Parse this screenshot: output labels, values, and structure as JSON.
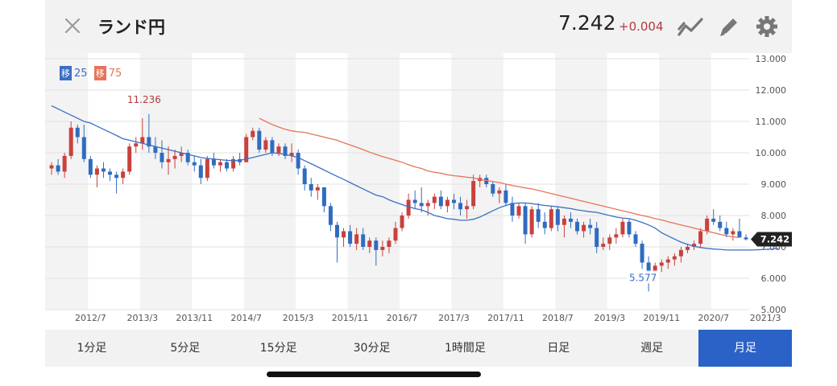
{
  "header": {
    "title": "ランド円",
    "price": "7.242",
    "change": "+0.004",
    "icons": [
      "close-icon",
      "trend-line-icon",
      "pencil-icon",
      "gear-icon"
    ]
  },
  "legend": [
    {
      "tag": "移",
      "value": "25",
      "color": "#3a6fc4"
    },
    {
      "tag": "移",
      "value": "75",
      "color": "#e8735a"
    }
  ],
  "annotations": {
    "high_label": "11.236",
    "low_label": "5.577",
    "last_price_label": "7.242"
  },
  "tabs": [
    {
      "label": "1分足",
      "active": false
    },
    {
      "label": "5分足",
      "active": false
    },
    {
      "label": "15分足",
      "active": false
    },
    {
      "label": "30分足",
      "active": false
    },
    {
      "label": "1時間足",
      "active": false
    },
    {
      "label": "日足",
      "active": false
    },
    {
      "label": "週足",
      "active": false
    },
    {
      "label": "月足",
      "active": true
    }
  ],
  "colors": {
    "up": "#c8413d",
    "down": "#2f6cc0",
    "ma25": "#3a6fc4",
    "ma75": "#e8735a",
    "active_tab": "#2b62c8"
  },
  "chart_data": {
    "type": "candlestick",
    "y_ticks": [
      "13.000",
      "12.000",
      "11.000",
      "10.000",
      "9.000",
      "8.000",
      "7.000",
      "6.000",
      "5.000"
    ],
    "ylim": [
      5,
      13
    ],
    "x_ticks": [
      "2012/7",
      "2013/3",
      "2013/11",
      "2014/7",
      "2015/3",
      "2015/11",
      "2016/7",
      "2017/3",
      "2017/11",
      "2018/7",
      "2019/3",
      "2019/11",
      "2020/7",
      "2021/3"
    ],
    "x_tick_months": [
      6,
      14,
      22,
      30,
      38,
      46,
      54,
      62,
      70,
      78,
      86,
      94,
      102,
      110
    ],
    "grid": true,
    "series": [
      {
        "name": "移25",
        "type": "line",
        "start_month": 0,
        "values": [
          11.5,
          11.4,
          11.3,
          11.2,
          11.1,
          11.0,
          10.95,
          10.85,
          10.75,
          10.65,
          10.55,
          10.45,
          10.4,
          10.35,
          10.3,
          10.25,
          10.2,
          10.15,
          10.1,
          10.05,
          10.0,
          9.95,
          9.9,
          9.85,
          9.82,
          9.8,
          9.78,
          9.76,
          9.75,
          9.76,
          9.8,
          9.85,
          9.9,
          9.95,
          10.0,
          9.98,
          9.95,
          9.9,
          9.85,
          9.75,
          9.65,
          9.55,
          9.45,
          9.35,
          9.25,
          9.15,
          9.05,
          8.95,
          8.85,
          8.75,
          8.65,
          8.6,
          8.5,
          8.42,
          8.35,
          8.28,
          8.22,
          8.18,
          8.1,
          8.0,
          7.95,
          7.9,
          7.88,
          7.85,
          7.85,
          7.88,
          7.95,
          8.05,
          8.15,
          8.25,
          8.32,
          8.38,
          8.4,
          8.4,
          8.38,
          8.35,
          8.32,
          8.3,
          8.28,
          8.25,
          8.22,
          8.18,
          8.15,
          8.12,
          8.1,
          8.05,
          8.0,
          7.95,
          7.92,
          7.9,
          7.85,
          7.78,
          7.7,
          7.6,
          7.45,
          7.35,
          7.25,
          7.15,
          7.08,
          7.02,
          6.98,
          6.95,
          6.93,
          6.92,
          6.9,
          6.9,
          6.9,
          6.9,
          6.9,
          6.91,
          6.92,
          6.93,
          6.95
        ]
      },
      {
        "name": "移75",
        "type": "line",
        "start_month": 32,
        "values": [
          11.1,
          11.0,
          10.9,
          10.82,
          10.75,
          10.7,
          10.67,
          10.65,
          10.6,
          10.55,
          10.5,
          10.45,
          10.4,
          10.32,
          10.25,
          10.18,
          10.1,
          10.02,
          9.95,
          9.88,
          9.82,
          9.76,
          9.7,
          9.62,
          9.55,
          9.5,
          9.42,
          9.38,
          9.35,
          9.3,
          9.27,
          9.25,
          9.22,
          9.2,
          9.15,
          9.12,
          9.08,
          9.05,
          9.0,
          8.96,
          8.92,
          8.88,
          8.85,
          8.8,
          8.75,
          8.7,
          8.65,
          8.6,
          8.55,
          8.5,
          8.45,
          8.4,
          8.35,
          8.3,
          8.25,
          8.2,
          8.15,
          8.1,
          8.05,
          8.0,
          7.96,
          7.9,
          7.86,
          7.8,
          7.75,
          7.7,
          7.65,
          7.6,
          7.55,
          7.5,
          7.45,
          7.4,
          7.35,
          7.32,
          7.3
        ]
      },
      {
        "name": "月足",
        "type": "ohlc",
        "ohlc": [
          [
            9.5,
            9.7,
            9.3,
            9.6
          ],
          [
            9.6,
            9.8,
            9.3,
            9.4
          ],
          [
            9.4,
            10.0,
            9.2,
            9.9
          ],
          [
            9.9,
            11.0,
            9.8,
            10.8
          ],
          [
            10.8,
            10.9,
            10.3,
            10.5
          ],
          [
            10.5,
            10.9,
            9.7,
            9.8
          ],
          [
            9.8,
            9.9,
            9.2,
            9.3
          ],
          [
            9.3,
            9.6,
            8.9,
            9.5
          ],
          [
            9.5,
            9.7,
            9.2,
            9.4
          ],
          [
            9.4,
            9.5,
            9.1,
            9.3
          ],
          [
            9.3,
            9.4,
            8.7,
            9.2
          ],
          [
            9.2,
            9.5,
            9.0,
            9.4
          ],
          [
            9.4,
            10.3,
            9.3,
            10.2
          ],
          [
            10.2,
            10.5,
            10.0,
            10.3
          ],
          [
            10.3,
            11.1,
            10.1,
            10.5
          ],
          [
            10.5,
            11.236,
            10.0,
            10.2
          ],
          [
            10.2,
            10.5,
            9.8,
            10.0
          ],
          [
            10.0,
            10.4,
            9.5,
            9.7
          ],
          [
            9.7,
            10.2,
            9.3,
            9.8
          ],
          [
            9.8,
            10.1,
            9.5,
            9.9
          ],
          [
            9.9,
            10.2,
            9.7,
            10.0
          ],
          [
            10.0,
            10.1,
            9.6,
            9.7
          ],
          [
            9.7,
            9.9,
            9.4,
            9.6
          ],
          [
            9.6,
            9.8,
            9.0,
            9.2
          ],
          [
            9.2,
            9.9,
            9.1,
            9.8
          ],
          [
            9.8,
            10.0,
            9.5,
            9.6
          ],
          [
            9.6,
            9.8,
            9.4,
            9.7
          ],
          [
            9.7,
            9.8,
            9.4,
            9.5
          ],
          [
            9.5,
            9.9,
            9.4,
            9.8
          ],
          [
            9.8,
            10.0,
            9.6,
            9.7
          ],
          [
            9.7,
            10.6,
            9.7,
            10.5
          ],
          [
            10.5,
            10.8,
            10.4,
            10.7
          ],
          [
            10.7,
            10.8,
            10.0,
            10.1
          ],
          [
            10.1,
            10.5,
            10.0,
            10.4
          ],
          [
            10.4,
            10.5,
            9.9,
            10.0
          ],
          [
            10.0,
            10.3,
            9.9,
            10.2
          ],
          [
            10.2,
            10.3,
            9.8,
            9.9
          ],
          [
            9.9,
            10.3,
            9.7,
            10.0
          ],
          [
            10.0,
            10.1,
            9.3,
            9.5
          ],
          [
            9.5,
            9.6,
            8.8,
            9.0
          ],
          [
            9.0,
            9.2,
            8.6,
            8.8
          ],
          [
            8.8,
            9.0,
            8.5,
            8.9
          ],
          [
            8.9,
            8.9,
            8.1,
            8.3
          ],
          [
            8.3,
            8.4,
            7.5,
            7.7
          ],
          [
            7.7,
            7.8,
            6.5,
            7.3
          ],
          [
            7.3,
            7.6,
            7.0,
            7.5
          ],
          [
            7.5,
            7.7,
            7.0,
            7.1
          ],
          [
            7.1,
            7.6,
            6.9,
            7.4
          ],
          [
            7.4,
            7.6,
            6.9,
            7.0
          ],
          [
            7.0,
            7.3,
            6.8,
            7.2
          ],
          [
            7.2,
            7.3,
            6.4,
            6.9
          ],
          [
            6.9,
            7.2,
            6.7,
            7.0
          ],
          [
            7.0,
            7.3,
            6.8,
            7.2
          ],
          [
            7.2,
            7.8,
            7.1,
            7.6
          ],
          [
            7.6,
            8.1,
            7.5,
            8.0
          ],
          [
            8.0,
            8.7,
            7.9,
            8.5
          ],
          [
            8.5,
            8.8,
            8.2,
            8.4
          ],
          [
            8.4,
            8.9,
            8.1,
            8.3
          ],
          [
            8.3,
            8.5,
            8.0,
            8.4
          ],
          [
            8.4,
            8.7,
            8.2,
            8.6
          ],
          [
            8.6,
            8.8,
            8.2,
            8.3
          ],
          [
            8.3,
            8.6,
            8.1,
            8.5
          ],
          [
            8.5,
            8.7,
            8.2,
            8.4
          ],
          [
            8.4,
            8.6,
            8.0,
            8.2
          ],
          [
            8.2,
            8.5,
            7.9,
            8.3
          ],
          [
            8.3,
            9.3,
            8.2,
            9.1
          ],
          [
            9.1,
            9.3,
            8.9,
            9.2
          ],
          [
            9.2,
            9.3,
            8.9,
            9.0
          ],
          [
            9.0,
            9.1,
            8.6,
            8.7
          ],
          [
            8.7,
            8.9,
            8.4,
            8.8
          ],
          [
            8.8,
            9.0,
            8.3,
            8.4
          ],
          [
            8.4,
            8.6,
            7.8,
            8.0
          ],
          [
            8.0,
            8.4,
            7.9,
            8.3
          ],
          [
            8.3,
            8.4,
            7.1,
            7.4
          ],
          [
            7.4,
            8.3,
            7.3,
            8.2
          ],
          [
            8.2,
            8.4,
            7.6,
            7.8
          ],
          [
            7.8,
            8.1,
            7.4,
            7.6
          ],
          [
            7.6,
            8.3,
            7.5,
            8.2
          ],
          [
            8.2,
            8.3,
            7.5,
            7.7
          ],
          [
            7.7,
            8.0,
            7.3,
            7.9
          ],
          [
            7.9,
            8.1,
            7.6,
            7.8
          ],
          [
            7.8,
            7.9,
            7.4,
            7.5
          ],
          [
            7.5,
            7.8,
            7.3,
            7.7
          ],
          [
            7.7,
            7.9,
            7.4,
            7.6
          ],
          [
            7.6,
            7.8,
            6.8,
            7.0
          ],
          [
            7.0,
            7.3,
            6.9,
            7.1
          ],
          [
            7.1,
            7.4,
            6.9,
            7.3
          ],
          [
            7.3,
            7.6,
            7.1,
            7.4
          ],
          [
            7.4,
            7.9,
            7.3,
            7.8
          ],
          [
            7.8,
            7.9,
            7.3,
            7.4
          ],
          [
            7.4,
            7.5,
            7.0,
            7.1
          ],
          [
            7.1,
            7.2,
            6.3,
            6.5
          ],
          [
            6.5,
            6.7,
            5.577,
            6.2
          ],
          [
            6.2,
            6.5,
            5.9,
            6.4
          ],
          [
            6.4,
            6.6,
            6.2,
            6.5
          ],
          [
            6.5,
            6.7,
            6.3,
            6.6
          ],
          [
            6.6,
            6.8,
            6.4,
            6.7
          ],
          [
            6.7,
            7.0,
            6.5,
            6.9
          ],
          [
            6.9,
            7.1,
            6.8,
            7.0
          ],
          [
            7.0,
            7.2,
            6.9,
            7.1
          ],
          [
            7.1,
            7.6,
            7.0,
            7.5
          ],
          [
            7.5,
            8.0,
            7.4,
            7.9
          ],
          [
            7.9,
            8.2,
            7.7,
            7.8
          ],
          [
            7.8,
            8.0,
            7.5,
            7.6
          ],
          [
            7.6,
            7.8,
            7.3,
            7.4
          ],
          [
            7.4,
            7.6,
            7.2,
            7.5
          ],
          [
            7.5,
            7.9,
            7.3,
            7.3
          ],
          [
            7.3,
            7.4,
            7.2,
            7.242
          ]
        ]
      }
    ]
  }
}
